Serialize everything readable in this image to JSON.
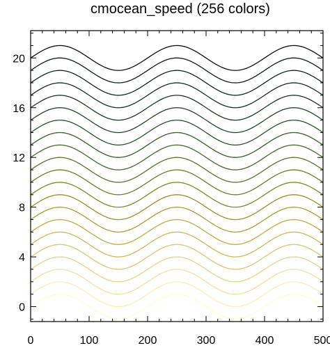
{
  "chart_data": {
    "type": "line",
    "title": "cmocean_speed (256 colors)",
    "xlabel": "",
    "ylabel": "",
    "xlim": [
      0,
      500
    ],
    "ylim": [
      -1.2,
      22.2
    ],
    "x_ticks": [
      0,
      100,
      200,
      300,
      400,
      500
    ],
    "x_tick_labels": [
      "0",
      "100",
      "200",
      "300",
      "400",
      "500"
    ],
    "y_ticks": [
      0,
      4,
      8,
      12,
      16,
      20
    ],
    "y_tick_labels": [
      "0",
      "4",
      "8",
      "12",
      "16",
      "20"
    ],
    "x_minor_step": 20,
    "y_minor_step": 1,
    "grid": false,
    "legend": "none",
    "curve_shape": "y = offset + sin(2*pi*x/200)",
    "x_samples": [
      0,
      10,
      20,
      30,
      40,
      50,
      60,
      70,
      80,
      90,
      100,
      110,
      120,
      130,
      140,
      150,
      160,
      170,
      180,
      190,
      200,
      210,
      220,
      230,
      240,
      250,
      260,
      270,
      280,
      290,
      300,
      310,
      320,
      330,
      340,
      350,
      360,
      370,
      380,
      390,
      400,
      410,
      420,
      430,
      440,
      450,
      460,
      470,
      480,
      490,
      500
    ],
    "series": [
      {
        "offset": 0,
        "color": "#fffdce"
      },
      {
        "offset": 1,
        "color": "#f8efb6"
      },
      {
        "offset": 2,
        "color": "#f1e29e"
      },
      {
        "offset": 3,
        "color": "#e9d485"
      },
      {
        "offset": 4,
        "color": "#dcc66d"
      },
      {
        "offset": 5,
        "color": "#cdb857"
      },
      {
        "offset": 6,
        "color": "#bcab42"
      },
      {
        "offset": 7,
        "color": "#a99f31"
      },
      {
        "offset": 8,
        "color": "#959326"
      },
      {
        "offset": 9,
        "color": "#7f8920"
      },
      {
        "offset": 10,
        "color": "#6a7e20"
      },
      {
        "offset": 11,
        "color": "#567423"
      },
      {
        "offset": 12,
        "color": "#436926"
      },
      {
        "offset": 13,
        "color": "#335e28"
      },
      {
        "offset": 14,
        "color": "#265228"
      },
      {
        "offset": 15,
        "color": "#1d4626"
      },
      {
        "offset": 16,
        "color": "#173a22"
      },
      {
        "offset": 17,
        "color": "#142f1e"
      },
      {
        "offset": 18,
        "color": "#11241a"
      },
      {
        "offset": 19,
        "color": "#0d1a14"
      },
      {
        "offset": 20,
        "color": "#0b0b0b"
      }
    ]
  }
}
